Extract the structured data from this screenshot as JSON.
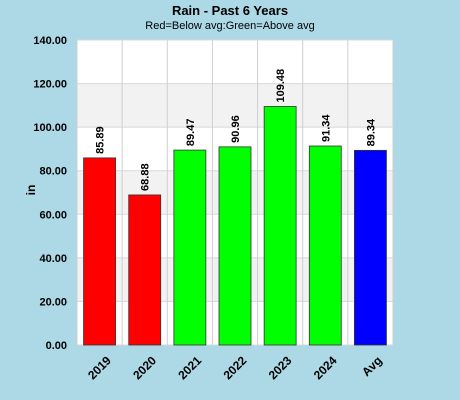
{
  "chart_data": {
    "type": "bar",
    "title": "Rain - Past 6 Years",
    "subtitle": "Red=Below avg:Green=Above avg",
    "xlabel": "",
    "ylabel": "in",
    "ylim": [
      0,
      140
    ],
    "yticks": [
      0,
      20,
      40,
      60,
      80,
      100,
      120,
      140
    ],
    "ytick_labels": [
      "0.00",
      "20.00",
      "40.00",
      "60.00",
      "80.00",
      "100.00",
      "120.00",
      "140.00"
    ],
    "categories": [
      "2019",
      "2020",
      "2021",
      "2022",
      "2023",
      "2024",
      "Avg"
    ],
    "values": [
      85.89,
      68.88,
      89.47,
      90.96,
      109.48,
      91.34,
      89.34
    ],
    "value_labels": [
      "85.89",
      "68.88",
      "89.47",
      "90.96",
      "109.48",
      "91.34",
      "89.34"
    ],
    "bar_colors": [
      "#ff0000",
      "#ff0000",
      "#00ff00",
      "#00ff00",
      "#00ff00",
      "#00ff00",
      "#0000ff"
    ],
    "grid": true,
    "legend": "none"
  },
  "colors": {
    "background": "#add8e6",
    "plot_band_light": "#ffffff",
    "plot_band_dark": "#f2f2f2",
    "below_avg": "#ff0000",
    "above_avg": "#00ff00",
    "average": "#0000ff"
  }
}
